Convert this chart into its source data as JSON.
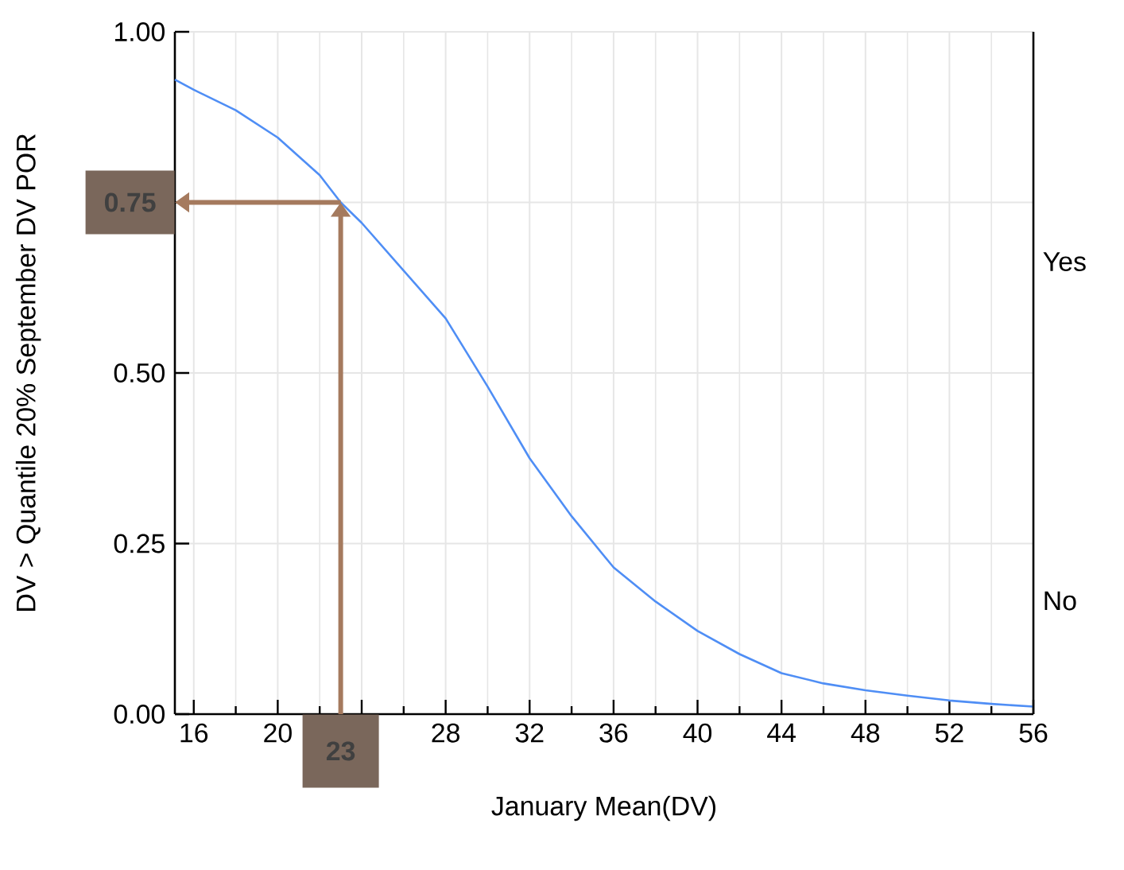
{
  "chart_data": {
    "type": "line",
    "xlabel": "January Mean(DV)",
    "ylabel": "DV > Quantile 20% September DV POR",
    "x": [
      15.1,
      16,
      18,
      20,
      22,
      23,
      24,
      26,
      28,
      30,
      32,
      34,
      36,
      38,
      40,
      42,
      44,
      46,
      48,
      50,
      52,
      54,
      56
    ],
    "series": [
      {
        "color": "#4f8ef5",
        "values": [
          0.93,
          0.915,
          0.885,
          0.845,
          0.79,
          0.75,
          0.72,
          0.65,
          0.58,
          0.48,
          0.375,
          0.29,
          0.215,
          0.165,
          0.122,
          0.088,
          0.06,
          0.045,
          0.035,
          0.027,
          0.02,
          0.015,
          0.011
        ]
      }
    ],
    "xlim": [
      15.1,
      56
    ],
    "ylim": [
      0,
      1
    ],
    "xticks": [
      16,
      {
        "value": 20,
        "label": "20"
      },
      {
        "value": 24,
        "label": null
      },
      28,
      32,
      36,
      40,
      44,
      48,
      52,
      56
    ],
    "yticks": [
      {
        "value": 0,
        "label": "0.00"
      },
      {
        "value": 0.25,
        "label": "0.25"
      },
      {
        "value": 0.5,
        "label": "0.50"
      },
      {
        "value": 0.75,
        "label": null
      },
      {
        "value": 1,
        "label": "1.00"
      }
    ],
    "grid": true,
    "marker": "none",
    "line_style": "solid",
    "ref_lines": [
      {
        "axis": "y",
        "value": 0.75,
        "color": "#a57a5e"
      },
      {
        "axis": "x",
        "value": 23,
        "color": "#a57a5e"
      }
    ],
    "annotations": [
      "0.75",
      "23",
      "Yes",
      "No"
    ]
  }
}
